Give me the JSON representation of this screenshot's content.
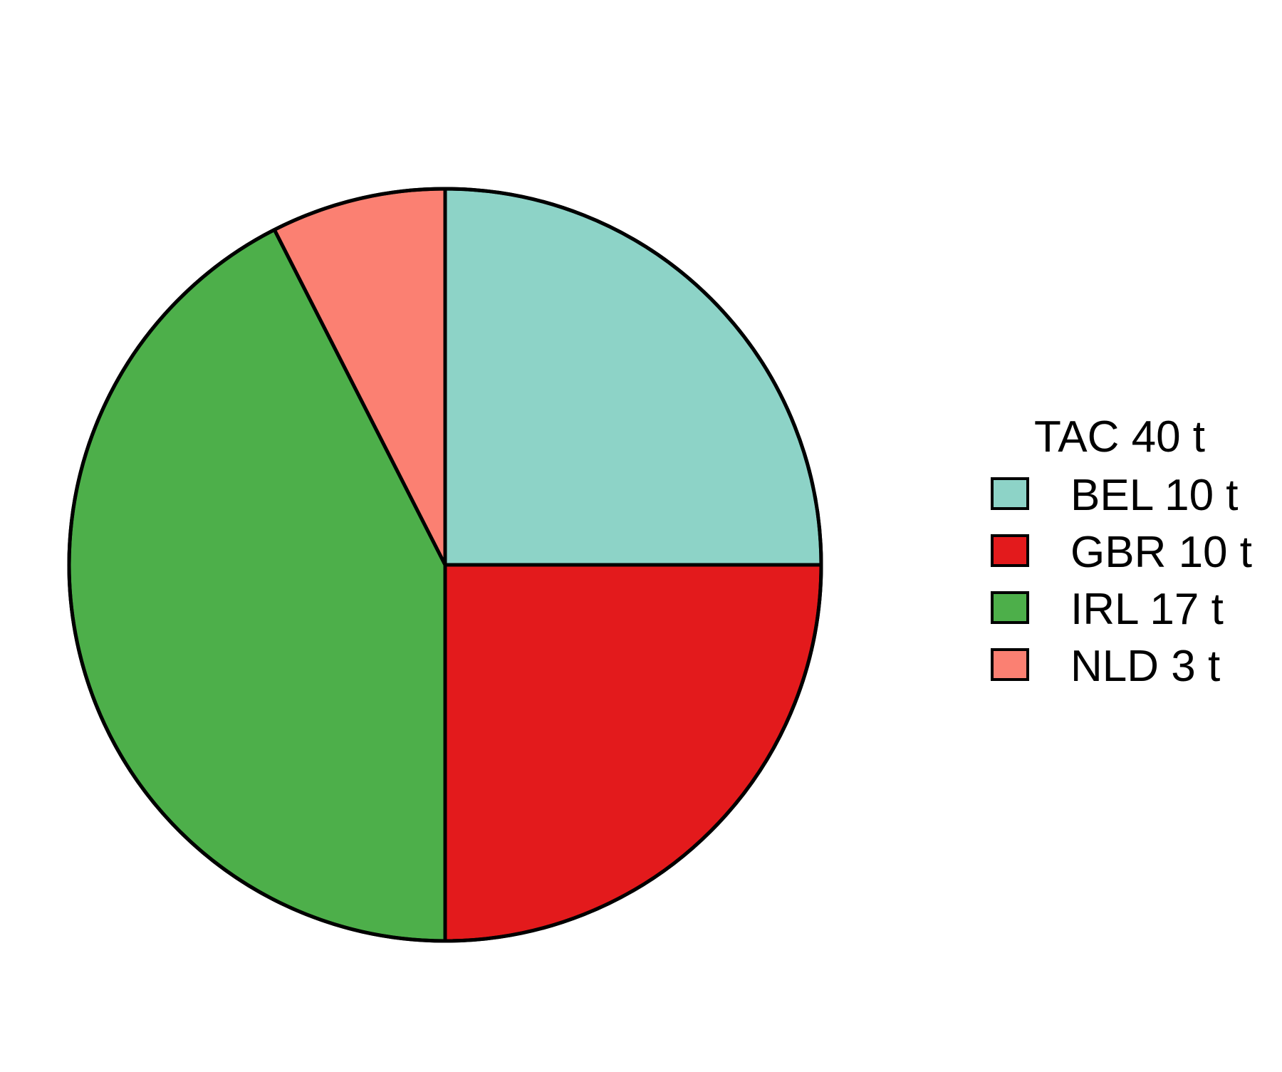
{
  "chart_data": {
    "type": "pie",
    "legend_title": "TAC 40 t",
    "legend_position": "right",
    "slices": [
      {
        "label": "BEL 10 t",
        "category": "BEL",
        "value": 10,
        "color": "#8DD3C7"
      },
      {
        "label": "GBR 10 t",
        "category": "GBR",
        "value": 10,
        "color": "#E31A1C"
      },
      {
        "label": "IRL 17 t",
        "category": "IRL",
        "value": 17,
        "color": "#4DAF4A"
      },
      {
        "label": "NLD 3 t",
        "category": "NLD",
        "value": 3,
        "color": "#FB8072"
      }
    ]
  }
}
